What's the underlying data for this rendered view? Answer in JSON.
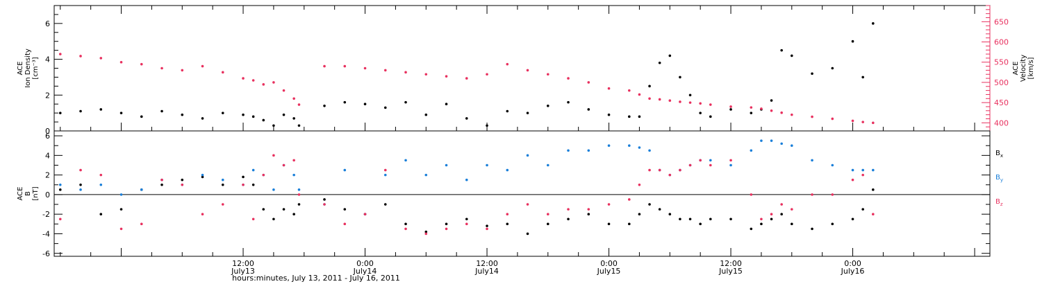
{
  "colors": {
    "black": "#000000",
    "pink": "#e8315f",
    "blue": "#1a7fd9"
  },
  "xaxis": {
    "title": "hours:minutes, July 13, 2011 - July 16, 2011",
    "range_hours": [
      -6.6,
      85.5
    ],
    "ticks": [
      {
        "hour": 12,
        "time": "12:00",
        "date": "July13"
      },
      {
        "hour": 24,
        "time": "0:00",
        "date": "July14"
      },
      {
        "hour": 36,
        "time": "12:00",
        "date": "July14"
      },
      {
        "hour": 48,
        "time": "0:00",
        "date": "July15"
      },
      {
        "hour": 60,
        "time": "12:00",
        "date": "July15"
      },
      {
        "hour": 72,
        "time": "0:00",
        "date": "July16"
      }
    ]
  },
  "chart_data": [
    {
      "type": "scatter",
      "panel": "top",
      "ylabel_left": [
        "ACE",
        "Ion Density",
        "[cm⁻³]"
      ],
      "ylabel_right": [
        "ACE",
        "Velocity",
        "[km/s]"
      ],
      "ylim_left": [
        0,
        7
      ],
      "yticks_left": [
        0,
        2,
        4,
        6
      ],
      "ylim_right": [
        380,
        690
      ],
      "yticks_right": [
        400,
        450,
        500,
        550,
        600,
        650
      ],
      "series": [
        {
          "key": "density",
          "axis": "left",
          "color": "#000000",
          "x_hours": [
            -6,
            -4,
            -2,
            0,
            2,
            4,
            6,
            8,
            10,
            12,
            13,
            14,
            15,
            16,
            17,
            17.5,
            20,
            22,
            24,
            26,
            28,
            30,
            32,
            34,
            36,
            38,
            40,
            42,
            44,
            46,
            48,
            50,
            51,
            52,
            53,
            54,
            55,
            56,
            57,
            58,
            60,
            62,
            63,
            64,
            65,
            66,
            68,
            70,
            72,
            73,
            74
          ],
          "values": [
            1.0,
            1.1,
            1.2,
            1.0,
            0.8,
            1.1,
            0.9,
            0.7,
            1.0,
            0.9,
            0.8,
            0.6,
            0.3,
            0.9,
            0.7,
            0.3,
            1.4,
            1.6,
            1.5,
            1.3,
            1.6,
            0.9,
            1.5,
            0.7,
            0.3,
            1.1,
            1.0,
            1.4,
            1.6,
            1.2,
            0.9,
            0.8,
            0.8,
            2.5,
            3.8,
            4.2,
            3.0,
            2.0,
            1.0,
            0.8,
            1.2,
            1.0,
            1.2,
            1.7,
            4.5,
            4.2,
            3.2,
            3.5,
            5.0,
            3.0,
            6.0
          ]
        },
        {
          "key": "velocity",
          "axis": "right",
          "color": "#e8315f",
          "x_hours": [
            -6,
            -4,
            -2,
            0,
            2,
            4,
            6,
            8,
            10,
            12,
            13,
            14,
            15,
            16,
            17,
            17.5,
            20,
            22,
            24,
            26,
            28,
            30,
            32,
            34,
            36,
            38,
            40,
            42,
            44,
            46,
            48,
            50,
            51,
            52,
            53,
            54,
            55,
            56,
            57,
            58,
            60,
            62,
            63,
            64,
            65,
            66,
            68,
            70,
            72,
            73,
            74
          ],
          "values": [
            570,
            565,
            560,
            550,
            545,
            535,
            530,
            540,
            525,
            510,
            505,
            495,
            500,
            480,
            460,
            445,
            540,
            540,
            535,
            530,
            525,
            520,
            515,
            510,
            520,
            545,
            530,
            520,
            510,
            500,
            485,
            480,
            470,
            460,
            458,
            455,
            452,
            450,
            448,
            445,
            440,
            438,
            435,
            430,
            425,
            420,
            415,
            410,
            405,
            402,
            400
          ]
        }
      ]
    },
    {
      "type": "scatter",
      "panel": "bottom",
      "ylabel_left": [
        "ACE",
        "B",
        "[nT]"
      ],
      "ylim": [
        -6.3,
        6.5
      ],
      "yticks": [
        -6,
        -4,
        -2,
        0,
        2,
        4,
        6
      ],
      "zero_line": true,
      "legend": [
        "Bx",
        "By",
        "Bz"
      ],
      "legend_placement": "right",
      "series": [
        {
          "key": "bx",
          "name": "Bx",
          "color": "#000000",
          "x_hours": [
            -6,
            -4,
            -2,
            0,
            2,
            4,
            6,
            8,
            10,
            12,
            13,
            14,
            15,
            16,
            17,
            17.5,
            20,
            22,
            24,
            26,
            28,
            30,
            32,
            34,
            36,
            38,
            40,
            42,
            44,
            46,
            48,
            50,
            51,
            52,
            53,
            54,
            55,
            56,
            57,
            58,
            60,
            62,
            63,
            64,
            65,
            66,
            68,
            70,
            72,
            73,
            74
          ],
          "values": [
            0.5,
            1.0,
            -2.0,
            -1.5,
            0.5,
            1.0,
            1.5,
            1.8,
            1.0,
            1.8,
            1.0,
            -1.5,
            -2.5,
            -1.5,
            -2.0,
            -1.0,
            -0.5,
            -1.5,
            -2.0,
            -1.0,
            -3.0,
            -3.8,
            -3.0,
            -2.5,
            -3.2,
            -3.0,
            -4.0,
            -3.0,
            -2.5,
            -2.0,
            -3.0,
            -3.0,
            -2.0,
            -1.0,
            -1.5,
            -2.0,
            -2.5,
            -2.5,
            -3.0,
            -2.5,
            -2.5,
            -3.5,
            -3.0,
            -2.5,
            -2.0,
            -3.0,
            -3.5,
            -3.0,
            -2.5,
            -1.5,
            0.5
          ]
        },
        {
          "key": "by",
          "name": "By",
          "color": "#1a7fd9",
          "x_hours": [
            -6,
            -4,
            -2,
            0,
            2,
            4,
            6,
            8,
            10,
            12,
            13,
            14,
            15,
            16,
            17,
            17.5,
            20,
            22,
            24,
            26,
            28,
            30,
            32,
            34,
            36,
            38,
            40,
            42,
            44,
            46,
            48,
            50,
            51,
            52,
            53,
            54,
            55,
            56,
            57,
            58,
            60,
            62,
            63,
            64,
            65,
            66,
            68,
            70,
            72,
            73,
            74
          ],
          "values": [
            1.0,
            0.5,
            1.0,
            0.0,
            0.5,
            1.5,
            1.0,
            2.0,
            1.5,
            1.0,
            2.5,
            2.0,
            0.5,
            3.0,
            2.0,
            0.5,
            -1.0,
            2.5,
            -2.0,
            2.0,
            3.5,
            2.0,
            3.0,
            1.5,
            3.0,
            2.5,
            4.0,
            3.0,
            4.5,
            4.5,
            5.0,
            5.0,
            4.8,
            4.5,
            2.5,
            2.0,
            2.5,
            3.0,
            3.5,
            3.5,
            3.0,
            4.5,
            5.5,
            5.5,
            5.2,
            5.0,
            3.5,
            3.0,
            2.5,
            2.5,
            2.5
          ]
        },
        {
          "key": "bz",
          "name": "Bz",
          "color": "#e8315f",
          "x_hours": [
            -6,
            -4,
            -2,
            0,
            2,
            4,
            6,
            8,
            10,
            12,
            13,
            14,
            15,
            16,
            17,
            17.5,
            20,
            22,
            24,
            26,
            28,
            30,
            32,
            34,
            36,
            38,
            40,
            42,
            44,
            46,
            48,
            50,
            51,
            52,
            53,
            54,
            55,
            56,
            57,
            58,
            60,
            62,
            63,
            64,
            65,
            66,
            68,
            70,
            72,
            73,
            74
          ],
          "values": [
            -2.5,
            2.5,
            2.0,
            -3.5,
            -3.0,
            1.5,
            1.0,
            -2.0,
            -1.0,
            1.0,
            -2.5,
            2.0,
            4.0,
            3.0,
            3.5,
            0.0,
            -1.0,
            -3.0,
            -2.0,
            2.5,
            -3.5,
            -4.0,
            -3.5,
            -3.0,
            -3.5,
            -2.0,
            -1.0,
            -2.0,
            -1.5,
            -1.5,
            -1.0,
            -0.5,
            1.0,
            2.5,
            2.5,
            2.0,
            2.5,
            3.0,
            3.5,
            3.0,
            3.5,
            0.0,
            -2.5,
            -2.0,
            -1.0,
            -1.5,
            0.0,
            0.0,
            1.5,
            2.0,
            -2.0
          ]
        }
      ]
    }
  ]
}
